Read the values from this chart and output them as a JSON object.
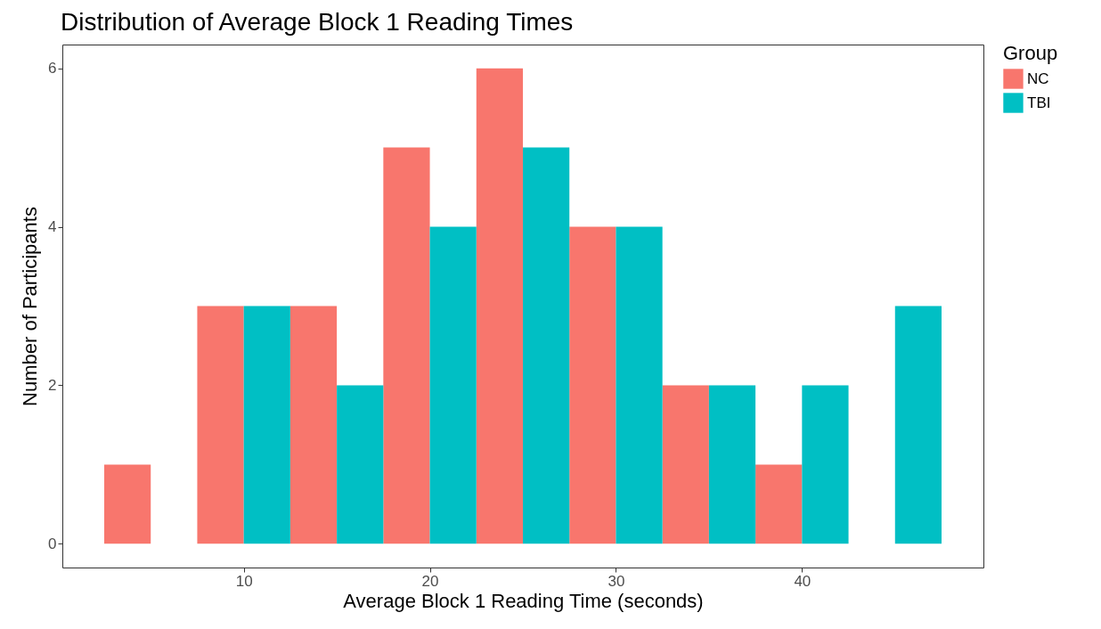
{
  "chart_data": {
    "type": "histogram",
    "title": "Distribution of Average Block 1 Reading Times",
    "xlabel": "Average Block 1 Reading Time (seconds)",
    "ylabel": "Number of Participants",
    "legend_title": "Group",
    "legend": "right",
    "grid": false,
    "bins": [
      2.5,
      7.5,
      12.5,
      17.5,
      22.5,
      27.5,
      32.5,
      37.5,
      42.5,
      47.5
    ],
    "series": [
      {
        "name": "NC",
        "color": "#f8766d",
        "values": [
          1,
          3,
          3,
          5,
          6,
          4,
          2,
          1,
          0
        ]
      },
      {
        "name": "TBI",
        "color": "#00bfc4",
        "values": [
          0,
          3,
          2,
          4,
          5,
          4,
          2,
          2,
          3
        ]
      }
    ],
    "xlim": [
      0.25,
      49.75
    ],
    "xticks": [
      10,
      20,
      30,
      40
    ],
    "ylim": [
      -0.3,
      6.3
    ],
    "yticks": [
      0,
      2,
      4,
      6
    ]
  }
}
